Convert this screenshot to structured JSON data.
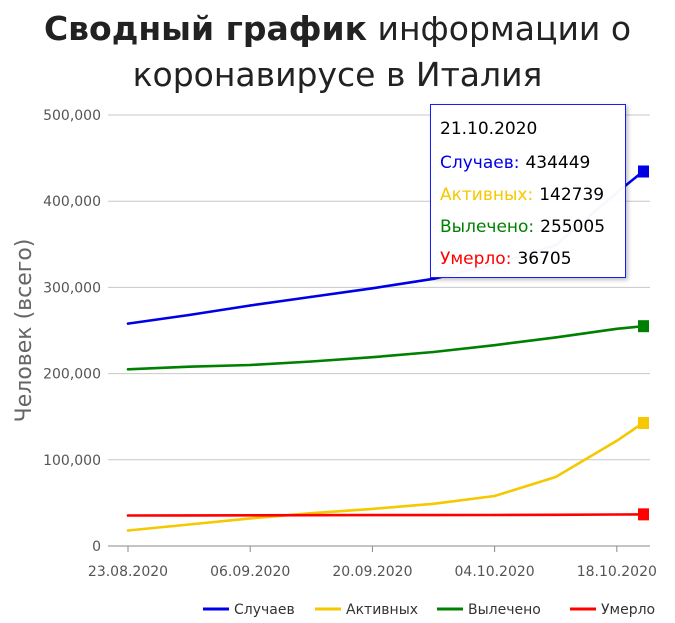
{
  "title": {
    "bold": "Сводный график",
    "rest": "информации о коронавирусе в Италия"
  },
  "tooltip": {
    "date": "21.10.2020",
    "rows": [
      {
        "label": "Случаев:",
        "value": "434449",
        "color": "#0000e6"
      },
      {
        "label": "Активных:",
        "value": "142739",
        "color": "#f5c800"
      },
      {
        "label": "Вылечено:",
        "value": "255005",
        "color": "#008000"
      },
      {
        "label": "Умерло:",
        "value": "36705",
        "color": "#ff0000"
      }
    ]
  },
  "chart_data": {
    "type": "line",
    "ylabel": "Человек (всего)",
    "xlabel": "",
    "ylim": [
      0,
      500000
    ],
    "y_ticks": [
      "0",
      "100,000",
      "200,000",
      "300,000",
      "400,000",
      "500,000"
    ],
    "x_ticks": [
      "23.08.2020",
      "06.09.2020",
      "20.09.2020",
      "04.10.2020",
      "18.10.2020"
    ],
    "x": [
      "23.08.2020",
      "30.08.2020",
      "06.09.2020",
      "13.09.2020",
      "20.09.2020",
      "27.09.2020",
      "04.10.2020",
      "11.10.2020",
      "18.10.2020",
      "21.10.2020"
    ],
    "series": [
      {
        "name": "Случаев",
        "color": "#0000e6",
        "values": [
          258000,
          268000,
          279000,
          289000,
          299000,
          310000,
          327000,
          349000,
          410000,
          434449
        ]
      },
      {
        "name": "Активных",
        "color": "#f5c800",
        "values": [
          18000,
          25000,
          32000,
          38000,
          43000,
          49000,
          58000,
          80000,
          122000,
          142739
        ]
      },
      {
        "name": "Вылечено",
        "color": "#008000",
        "values": [
          205000,
          208000,
          210000,
          214000,
          219000,
          225000,
          233000,
          242000,
          252000,
          255005
        ]
      },
      {
        "name": "Умерло",
        "color": "#ff0000",
        "values": [
          35400,
          35500,
          35600,
          35700,
          35800,
          35900,
          36000,
          36200,
          36500,
          36705
        ]
      }
    ],
    "legend": "bottom-right",
    "grid": true
  }
}
